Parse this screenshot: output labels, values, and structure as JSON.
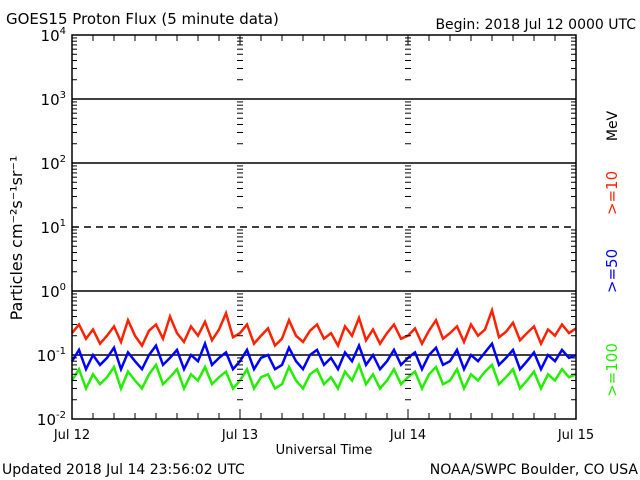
{
  "chart_data": {
    "type": "line",
    "title": "GOES15 Proton Flux (5 minute data)",
    "begin_label": "Begin: 2018 Jul 12 0000 UTC",
    "xlabel": "Universal Time",
    "ylabel": "Particles cm⁻²s⁻¹sr⁻¹",
    "yscale": "log",
    "ylim": [
      0.01,
      10000
    ],
    "xlim_hours": [
      0,
      72
    ],
    "x_ticks": [
      {
        "hour": 0,
        "label": "Jul 12"
      },
      {
        "hour": 24,
        "label": "Jul 13"
      },
      {
        "hour": 48,
        "label": "Jul 14"
      },
      {
        "hour": 72,
        "label": "Jul 15"
      }
    ],
    "y_ticks": [
      {
        "exp": 4,
        "label": "10",
        "sup": "4"
      },
      {
        "exp": 3,
        "label": "10",
        "sup": "3"
      },
      {
        "exp": 2,
        "label": "10",
        "sup": "2"
      },
      {
        "exp": 1,
        "label": "10",
        "sup": "1"
      },
      {
        "exp": 0,
        "label": "10",
        "sup": "0"
      },
      {
        "exp": -1,
        "label": "10",
        "sup": "-1"
      },
      {
        "exp": -2,
        "label": "10",
        "sup": "-2"
      }
    ],
    "solid_gridlines_exp": [
      3,
      2,
      0,
      -1
    ],
    "dashed_threshold_exp": 1,
    "legend": {
      "placement": "right",
      "unit": "MeV"
    },
    "x_hours_step": 1,
    "series": [
      {
        "name": ">=10",
        "color": "#ff2200",
        "values": [
          0.22,
          0.3,
          0.18,
          0.25,
          0.15,
          0.2,
          0.28,
          0.16,
          0.35,
          0.2,
          0.14,
          0.24,
          0.3,
          0.18,
          0.4,
          0.22,
          0.16,
          0.28,
          0.2,
          0.33,
          0.17,
          0.25,
          0.45,
          0.19,
          0.22,
          0.3,
          0.15,
          0.2,
          0.26,
          0.14,
          0.18,
          0.35,
          0.2,
          0.16,
          0.24,
          0.3,
          0.18,
          0.22,
          0.14,
          0.28,
          0.2,
          0.38,
          0.17,
          0.25,
          0.15,
          0.22,
          0.3,
          0.18,
          0.2,
          0.26,
          0.15,
          0.24,
          0.35,
          0.18,
          0.22,
          0.28,
          0.16,
          0.3,
          0.2,
          0.25,
          0.5,
          0.19,
          0.23,
          0.32,
          0.17,
          0.22,
          0.28,
          0.15,
          0.25,
          0.2,
          0.3,
          0.22,
          0.26
        ]
      },
      {
        "name": ">=50",
        "color": "#0000ff",
        "values": [
          0.08,
          0.12,
          0.06,
          0.1,
          0.07,
          0.09,
          0.13,
          0.06,
          0.11,
          0.08,
          0.06,
          0.1,
          0.14,
          0.07,
          0.09,
          0.12,
          0.06,
          0.1,
          0.08,
          0.15,
          0.07,
          0.09,
          0.11,
          0.06,
          0.08,
          0.12,
          0.06,
          0.09,
          0.1,
          0.06,
          0.07,
          0.13,
          0.08,
          0.06,
          0.1,
          0.12,
          0.07,
          0.09,
          0.06,
          0.11,
          0.08,
          0.14,
          0.07,
          0.1,
          0.06,
          0.08,
          0.12,
          0.07,
          0.09,
          0.11,
          0.06,
          0.1,
          0.13,
          0.07,
          0.08,
          0.12,
          0.06,
          0.1,
          0.08,
          0.11,
          0.15,
          0.07,
          0.09,
          0.12,
          0.06,
          0.08,
          0.11,
          0.06,
          0.1,
          0.08,
          0.12,
          0.09,
          0.1
        ]
      },
      {
        "name": ">=100",
        "color": "#22ee00",
        "values": [
          0.04,
          0.06,
          0.03,
          0.05,
          0.035,
          0.045,
          0.065,
          0.03,
          0.055,
          0.04,
          0.03,
          0.05,
          0.07,
          0.035,
          0.045,
          0.06,
          0.03,
          0.05,
          0.04,
          0.065,
          0.035,
          0.045,
          0.055,
          0.03,
          0.04,
          0.06,
          0.03,
          0.045,
          0.05,
          0.03,
          0.035,
          0.065,
          0.04,
          0.03,
          0.05,
          0.06,
          0.035,
          0.045,
          0.03,
          0.055,
          0.04,
          0.07,
          0.035,
          0.05,
          0.03,
          0.04,
          0.06,
          0.035,
          0.045,
          0.055,
          0.03,
          0.05,
          0.065,
          0.035,
          0.04,
          0.06,
          0.03,
          0.05,
          0.04,
          0.055,
          0.07,
          0.035,
          0.045,
          0.06,
          0.03,
          0.04,
          0.055,
          0.03,
          0.05,
          0.04,
          0.06,
          0.045,
          0.05
        ]
      }
    ]
  },
  "footer": {
    "updated": "Updated 2018 Jul 14 23:56:02 UTC",
    "source": "NOAA/SWPC Boulder, CO USA"
  }
}
